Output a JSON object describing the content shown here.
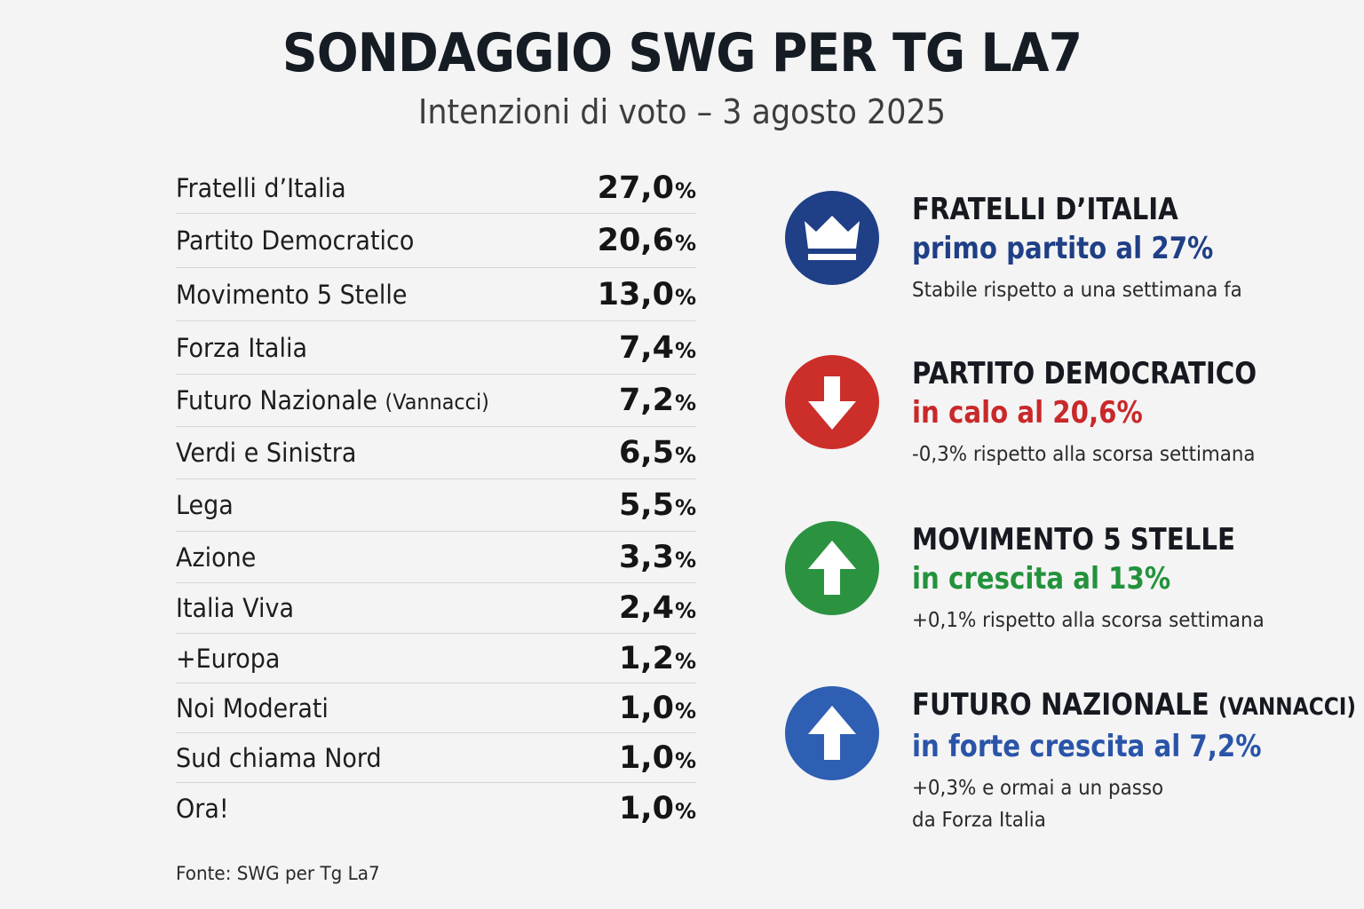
{
  "header": {
    "title": "SONDAGGIO SWG PER TG LA7",
    "subtitle": "Intenzioni di voto – 3 agosto 2025"
  },
  "chart_data": {
    "type": "table",
    "title": "SONDAGGIO SWG PER TG LA7",
    "subtitle": "Intenzioni di voto – 3 agosto 2025",
    "unit": "%",
    "rows": [
      {
        "party": "Fratelli d’Italia",
        "note": "",
        "value": 27.0,
        "display": "27,0"
      },
      {
        "party": "Partito Democratico",
        "note": "",
        "value": 20.6,
        "display": "20,6"
      },
      {
        "party": "Movimento 5 Stelle",
        "note": "",
        "value": 13.0,
        "display": "13,0"
      },
      {
        "party": "Forza Italia",
        "note": "",
        "value": 7.4,
        "display": "7,4"
      },
      {
        "party": "Futuro Nazionale",
        "note": "(Vannacci)",
        "value": 7.2,
        "display": "7,2"
      },
      {
        "party": "Verdi e Sinistra",
        "note": "",
        "value": 6.5,
        "display": "6,5"
      },
      {
        "party": "Lega",
        "note": "",
        "value": 5.5,
        "display": "5,5"
      },
      {
        "party": "Azione",
        "note": "",
        "value": 3.3,
        "display": "3,3"
      },
      {
        "party": "Italia Viva",
        "note": "",
        "value": 2.4,
        "display": "2,4"
      },
      {
        "party": "+Europa",
        "note": "",
        "value": 1.2,
        "display": "1,2"
      },
      {
        "party": "Noi Moderati",
        "note": "",
        "value": 1.0,
        "display": "1,0"
      },
      {
        "party": "Sud chiama Nord",
        "note": "",
        "value": 1.0,
        "display": "1,0"
      },
      {
        "party": "Ora!",
        "note": "",
        "value": 1.0,
        "display": "1,0"
      }
    ]
  },
  "highlights": [
    {
      "icon": "crown-icon",
      "icon_color": "#1f3f86",
      "party": "FRATELLI D’ITALIA",
      "party_note": "",
      "trend": "primo partito al 27%",
      "trend_color": "#1f3f86",
      "description": [
        "Stabile rispetto a una settimana fa"
      ]
    },
    {
      "icon": "arrow-down-icon",
      "icon_color": "#cc2e2a",
      "party": "PARTITO DEMOCRATICO",
      "party_note": "",
      "trend": "in calo al 20,6%",
      "trend_color": "#c9282a",
      "description": [
        "-0,3% rispetto alla scorsa settimana"
      ]
    },
    {
      "icon": "arrow-up-icon",
      "icon_color": "#2b9340",
      "party": "MOVIMENTO 5 STELLE",
      "party_note": "",
      "trend": "in crescita al 13%",
      "trend_color": "#23923c",
      "description": [
        "+0,1% rispetto alla scorsa settimana"
      ]
    },
    {
      "icon": "arrow-up-icon",
      "icon_color": "#2f5fb3",
      "party": "FUTURO NAZIONALE",
      "party_note": "(VANNACCI)",
      "trend": "in forte crescita al 7,2%",
      "trend_color": "#2a54a8",
      "description": [
        "+0,3% e ormai a un passo",
        "da Forza Italia"
      ]
    }
  ],
  "footer": {
    "source": "Fonte: SWG per Tg La7"
  }
}
